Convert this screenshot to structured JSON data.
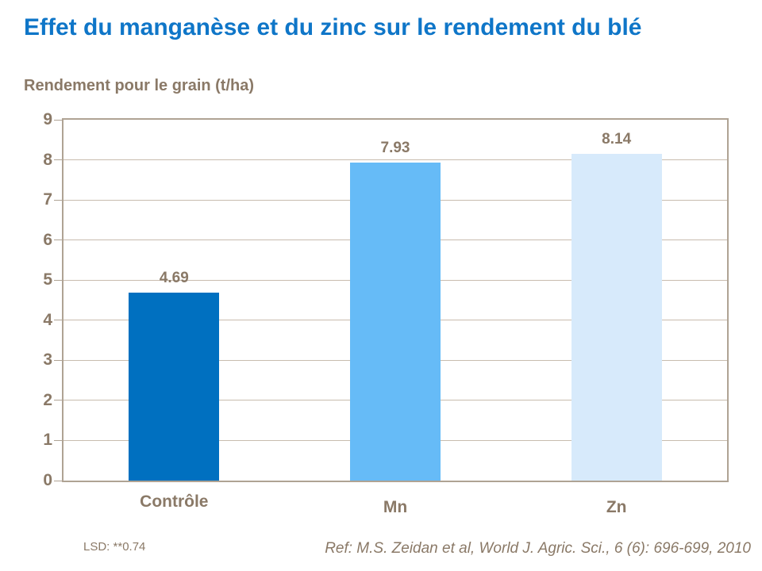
{
  "title": "Effet du manganèse et du zinc sur le rendement du blé",
  "subtitle": "Rendement pour le grain (t/ha)",
  "footer": {
    "lsd": "LSD: **0.74",
    "ref": "Ref: M.S. Zeidan et al, World J. Agric. Sci., 6 (6): 696-699, 2010"
  },
  "colors": {
    "title": "#0F76C8",
    "text": "#8A7967",
    "plot_border": "#AFA394",
    "gridline": "#C8BCAE",
    "background": "#FFFFFF"
  },
  "chart_data": {
    "type": "bar",
    "title": "Effet du manganèse et du zinc sur le rendement du blé",
    "ylabel": "Rendement pour le grain (t/ha)",
    "xlabel": "",
    "categories": [
      "Contrôle",
      "Mn",
      "Zn"
    ],
    "values": [
      4.69,
      7.93,
      8.14
    ],
    "value_labels": [
      "4.69",
      "7.93",
      "8.14"
    ],
    "bar_colors": [
      "#0070C0",
      "#66BBF7",
      "#D7EAFB"
    ],
    "ylim": [
      0,
      9
    ],
    "ytick_step": 1,
    "ytick_labels": [
      "0",
      "1",
      "2",
      "3",
      "4",
      "5",
      "6",
      "7",
      "8",
      "9"
    ],
    "grid": true,
    "legend": false,
    "annotations": [
      "LSD: **0.74",
      "Ref: M.S. Zeidan et al, World J. Agric. Sci., 6 (6): 696-699, 2010"
    ]
  }
}
